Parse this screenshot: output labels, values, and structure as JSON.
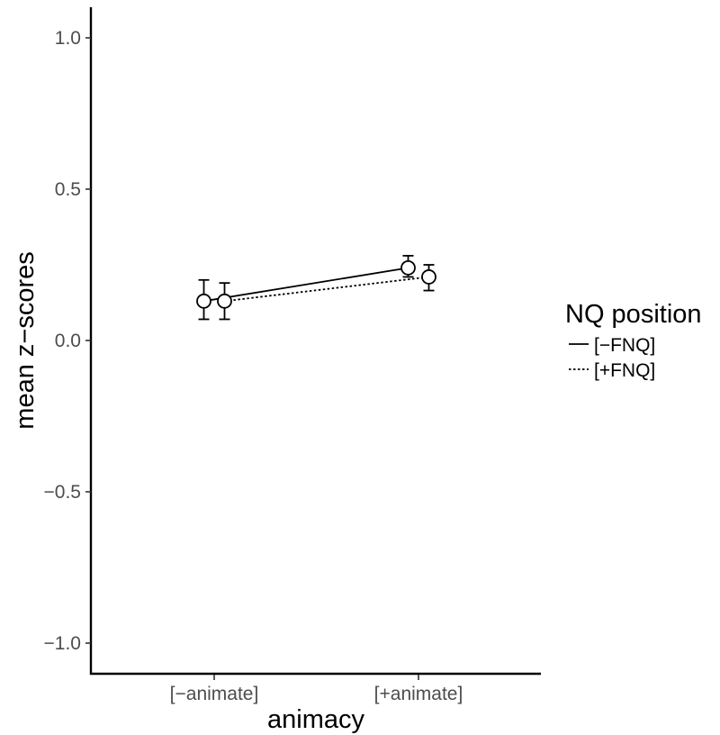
{
  "chart_data": {
    "type": "line",
    "title": "",
    "xlabel": "animacy",
    "ylabel": "mean z−scores",
    "categories": [
      "[−animate]",
      "[+animate]"
    ],
    "ylim": [
      -1.1,
      1.1
    ],
    "yticks": [
      1.0,
      0.5,
      0.0,
      -0.5,
      -1.0
    ],
    "ytick_labels": [
      "1.0",
      "0.5",
      "0.0",
      "−0.5",
      "−1.0"
    ],
    "grid": false,
    "legend": {
      "title": "NQ position",
      "placement": "right",
      "entries": [
        {
          "label": "[−FNQ]",
          "linestyle": "solid"
        },
        {
          "label": "[+FNQ]",
          "linestyle": "dotted"
        }
      ]
    },
    "series": [
      {
        "name": "[−FNQ]",
        "linestyle": "solid",
        "values": [
          0.13,
          0.24
        ],
        "error_low": [
          0.07,
          0.21
        ],
        "error_high": [
          0.2,
          0.28
        ]
      },
      {
        "name": "[+FNQ]",
        "linestyle": "dotted",
        "values": [
          0.13,
          0.21
        ],
        "error_low": [
          0.07,
          0.165
        ],
        "error_high": [
          0.19,
          0.25
        ]
      }
    ]
  }
}
